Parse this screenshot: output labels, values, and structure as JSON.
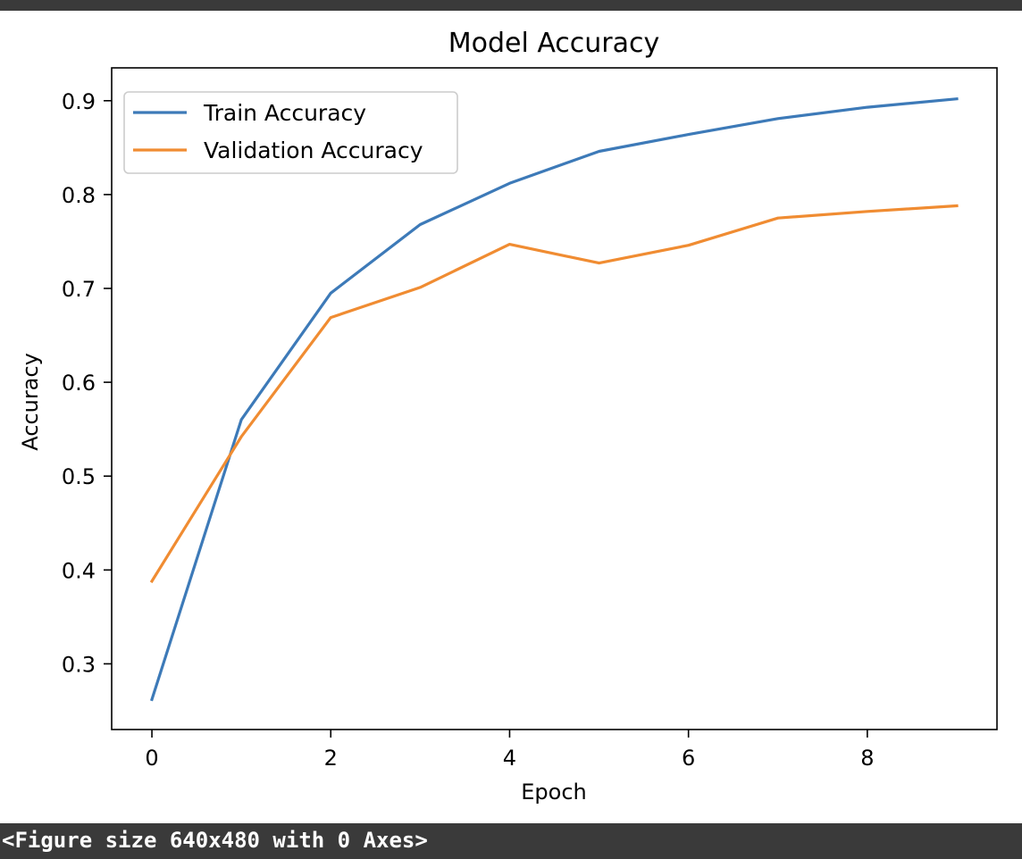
{
  "chart_data": {
    "type": "line",
    "title": "Model Accuracy",
    "xlabel": "Epoch",
    "ylabel": "Accuracy",
    "x": [
      0,
      1,
      2,
      3,
      4,
      5,
      6,
      7,
      8,
      9
    ],
    "xlim": [
      -0.45,
      9.45
    ],
    "ylim": [
      0.23,
      0.935
    ],
    "xticks": [
      0,
      2,
      4,
      6,
      8
    ],
    "yticks": [
      0.3,
      0.4,
      0.5,
      0.6,
      0.7,
      0.8,
      0.9
    ],
    "grid": false,
    "legend_position": "upper left",
    "series": [
      {
        "name": "Train Accuracy",
        "color": "#3d7ab8",
        "values": [
          0.262,
          0.56,
          0.695,
          0.768,
          0.812,
          0.846,
          0.864,
          0.881,
          0.893,
          0.902
        ]
      },
      {
        "name": "Validation Accuracy",
        "color": "#f08c32",
        "values": [
          0.388,
          0.542,
          0.669,
          0.701,
          0.747,
          0.727,
          0.746,
          0.775,
          0.782,
          0.788
        ]
      }
    ]
  },
  "output_text": "<Figure size 640x480 with 0 Axes>"
}
